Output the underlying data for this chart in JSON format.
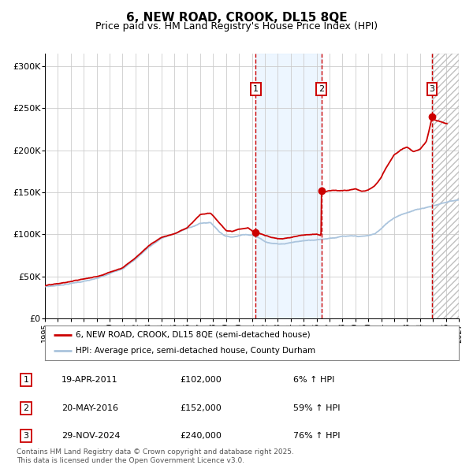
{
  "title": "6, NEW ROAD, CROOK, DL15 8QE",
  "subtitle": "Price paid vs. HM Land Registry's House Price Index (HPI)",
  "title_fontsize": 11,
  "subtitle_fontsize": 9,
  "xlim_start": 1995.0,
  "xlim_end": 2027.0,
  "ylim_min": 0,
  "ylim_max": 315000,
  "yticks": [
    0,
    50000,
    100000,
    150000,
    200000,
    250000,
    300000
  ],
  "ytick_labels": [
    "£0",
    "£50K",
    "£100K",
    "£150K",
    "£200K",
    "£250K",
    "£300K"
  ],
  "xtick_years": [
    1995,
    1996,
    1997,
    1998,
    1999,
    2000,
    2001,
    2002,
    2003,
    2004,
    2005,
    2006,
    2007,
    2008,
    2009,
    2010,
    2011,
    2012,
    2013,
    2014,
    2015,
    2016,
    2017,
    2018,
    2019,
    2020,
    2021,
    2022,
    2023,
    2024,
    2025,
    2026,
    2027
  ],
  "background_color": "#ffffff",
  "plot_bg_color": "#ffffff",
  "grid_color": "#cccccc",
  "hpi_line_color": "#aac4dd",
  "price_line_color": "#cc0000",
  "sale_marker_color": "#cc0000",
  "sale1_x": 2011.3,
  "sale1_y": 102000,
  "sale2_x": 2016.38,
  "sale2_y": 152000,
  "sale3_x": 2024.92,
  "sale3_y": 240000,
  "shade_color": "#ddeeff",
  "shade_alpha": 0.5,
  "legend_house_label": "6, NEW ROAD, CROOK, DL15 8QE (semi-detached house)",
  "legend_hpi_label": "HPI: Average price, semi-detached house, County Durham",
  "table_rows": [
    {
      "num": "1",
      "date": "19-APR-2011",
      "price": "£102,000",
      "change": "6% ↑ HPI"
    },
    {
      "num": "2",
      "date": "20-MAY-2016",
      "price": "£152,000",
      "change": "59% ↑ HPI"
    },
    {
      "num": "3",
      "date": "29-NOV-2024",
      "price": "£240,000",
      "change": "76% ↑ HPI"
    }
  ],
  "footnote": "Contains HM Land Registry data © Crown copyright and database right 2025.\nThis data is licensed under the Open Government Licence v3.0."
}
